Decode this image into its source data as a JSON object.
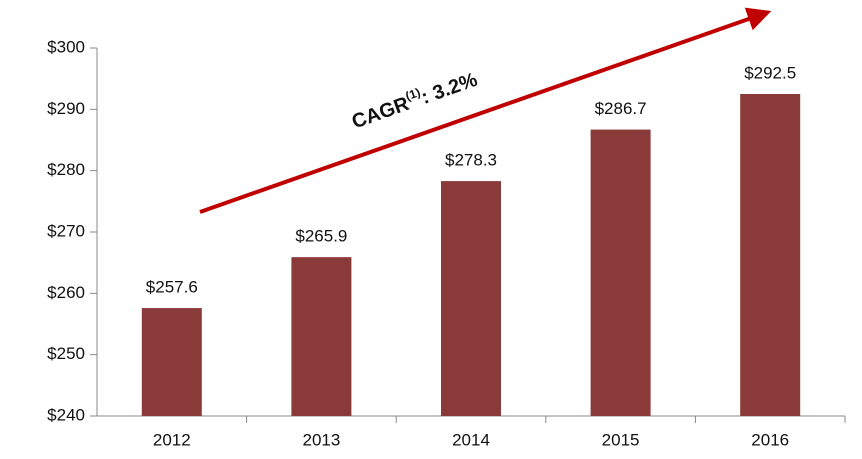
{
  "chart_data": {
    "type": "bar",
    "annotation": [
      "CAGR",
      "(1)",
      ": 3.2%"
    ],
    "categories": [
      "2012",
      "2013",
      "2014",
      "2015",
      "2016"
    ],
    "values": [
      257.6,
      265.9,
      278.3,
      286.7,
      292.5
    ],
    "value_labels": [
      "$257.6",
      "$265.9",
      "$278.3",
      "$286.7",
      "$292.5"
    ],
    "color": "#8b3a3a",
    "ylim": [
      240,
      300
    ],
    "yticks": [
      {
        "value": 240,
        "label": "$240"
      },
      {
        "value": 250,
        "label": "$250"
      },
      {
        "value": 260,
        "label": "$260"
      },
      {
        "value": 270,
        "label": "$270"
      },
      {
        "value": 280,
        "label": "$280"
      },
      {
        "value": 290,
        "label": "$290"
      },
      {
        "value": 300,
        "label": "$300"
      }
    ]
  }
}
